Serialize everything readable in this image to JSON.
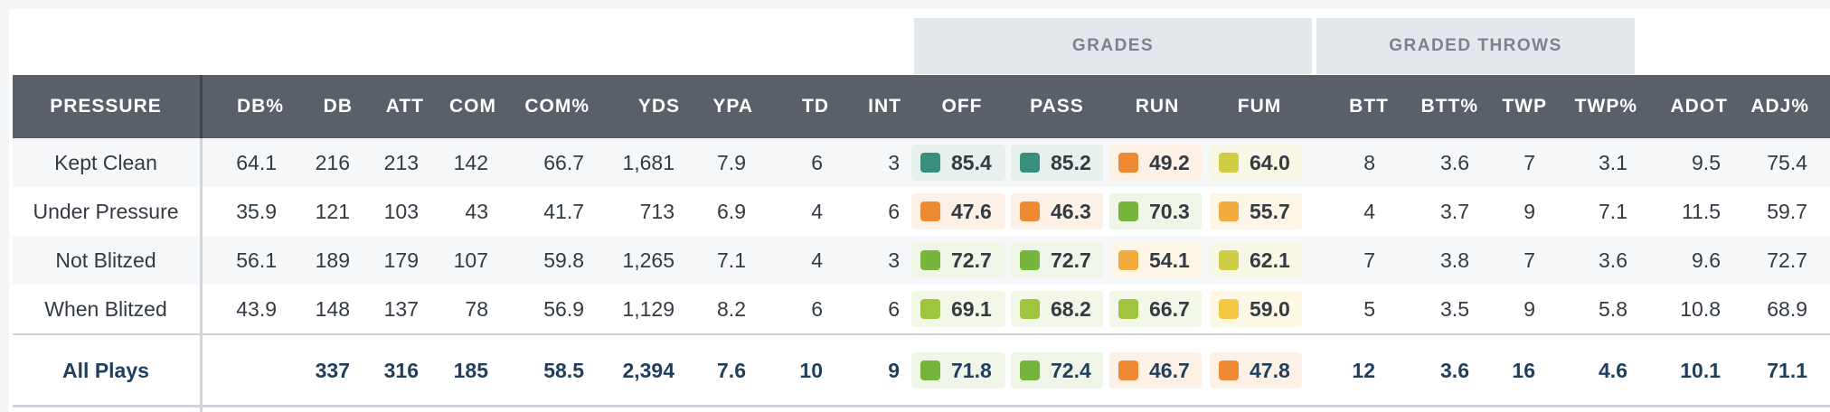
{
  "group_headers": {
    "grades": "GRADES",
    "graded_throws": "GRADED THROWS"
  },
  "columns": [
    "PRESSURE",
    "DB%",
    "DB",
    "ATT",
    "COM",
    "COM%",
    "YDS",
    "YPA",
    "TD",
    "INT",
    "OFF",
    "PASS",
    "RUN",
    "FUM",
    "BTT",
    "BTT%",
    "TWP",
    "TWP%",
    "ADOT",
    "ADJ%"
  ],
  "grade_colors": {
    "elite": "#3a8f7a",
    "high": "#76b53c",
    "above_avg": "#9fc43e",
    "avg": "#cfcc45",
    "below_avg_yellow": "#f4c842",
    "below_avg": "#f2ab3c",
    "low": "#ee8a34"
  },
  "rows": [
    {
      "label": "Kept Clean",
      "stats": [
        "64.1",
        "216",
        "213",
        "142",
        "66.7",
        "1,681",
        "7.9",
        "6",
        "3"
      ],
      "grades": [
        {
          "value": "85.4",
          "color": "#3a8f7a",
          "bg": "#e8f0ee"
        },
        {
          "value": "85.2",
          "color": "#3a8f7a",
          "bg": "#e8f0ee"
        },
        {
          "value": "49.2",
          "color": "#ee8a34",
          "bg": "#fdf1e6"
        },
        {
          "value": "64.0",
          "color": "#cfcc45",
          "bg": "#f8f7e6"
        }
      ],
      "throws": [
        "8",
        "3.6",
        "7",
        "3.1",
        "9.5",
        "75.4"
      ]
    },
    {
      "label": "Under Pressure",
      "stats": [
        "35.9",
        "121",
        "103",
        "43",
        "41.7",
        "713",
        "6.9",
        "4",
        "6"
      ],
      "grades": [
        {
          "value": "47.6",
          "color": "#ee8a34",
          "bg": "#fdf1e6"
        },
        {
          "value": "46.3",
          "color": "#ee8a34",
          "bg": "#fdf1e6"
        },
        {
          "value": "70.3",
          "color": "#76b53c",
          "bg": "#eff6e8"
        },
        {
          "value": "55.7",
          "color": "#f2ab3c",
          "bg": "#fdf5e6"
        }
      ],
      "throws": [
        "4",
        "3.7",
        "9",
        "7.1",
        "11.5",
        "59.7"
      ]
    },
    {
      "label": "Not Blitzed",
      "stats": [
        "56.1",
        "189",
        "179",
        "107",
        "59.8",
        "1,265",
        "7.1",
        "4",
        "3"
      ],
      "grades": [
        {
          "value": "72.7",
          "color": "#76b53c",
          "bg": "#eff6e8"
        },
        {
          "value": "72.7",
          "color": "#76b53c",
          "bg": "#eff6e8"
        },
        {
          "value": "54.1",
          "color": "#f2ab3c",
          "bg": "#fdf5e6"
        },
        {
          "value": "62.1",
          "color": "#cfcc45",
          "bg": "#f8f7e6"
        }
      ],
      "throws": [
        "7",
        "3.8",
        "7",
        "3.6",
        "9.6",
        "72.7"
      ]
    },
    {
      "label": "When Blitzed",
      "stats": [
        "43.9",
        "148",
        "137",
        "78",
        "56.9",
        "1,129",
        "8.2",
        "6",
        "6"
      ],
      "grades": [
        {
          "value": "69.1",
          "color": "#9fc43e",
          "bg": "#f2f7e8"
        },
        {
          "value": "68.2",
          "color": "#9fc43e",
          "bg": "#f2f7e8"
        },
        {
          "value": "66.7",
          "color": "#9fc43e",
          "bg": "#f2f7e8"
        },
        {
          "value": "59.0",
          "color": "#f4c842",
          "bg": "#fdf8e6"
        }
      ],
      "throws": [
        "5",
        "3.5",
        "9",
        "5.8",
        "10.8",
        "68.9"
      ]
    }
  ],
  "total": {
    "label": "All Plays",
    "stats": [
      "",
      "337",
      "316",
      "185",
      "58.5",
      "2,394",
      "7.6",
      "10",
      "9"
    ],
    "grades": [
      {
        "value": "71.8",
        "color": "#76b53c",
        "bg": "#eff6e8"
      },
      {
        "value": "72.4",
        "color": "#76b53c",
        "bg": "#eff6e8"
      },
      {
        "value": "46.7",
        "color": "#ee8a34",
        "bg": "#fdf1e6"
      },
      {
        "value": "47.8",
        "color": "#ee8a34",
        "bg": "#fdf1e6"
      }
    ],
    "throws": [
      "12",
      "3.6",
      "16",
      "4.6",
      "10.1",
      "71.1"
    ]
  }
}
